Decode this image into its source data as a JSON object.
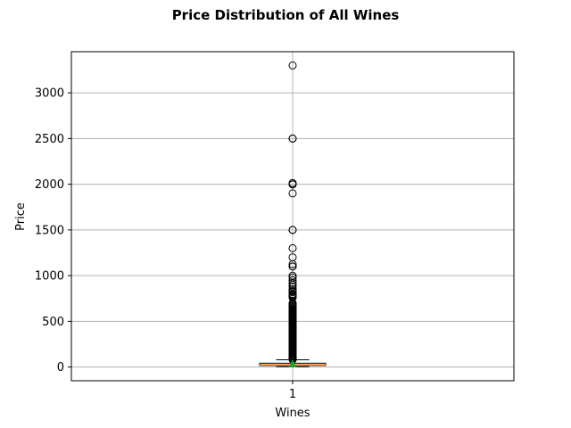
{
  "chart_data": {
    "type": "box",
    "title": "Price Distribution of All Wines",
    "xlabel": "Wines",
    "ylabel": "Price",
    "categories": [
      "1"
    ],
    "ylim": [
      -150,
      3450
    ],
    "yticks": [
      0,
      500,
      1000,
      1500,
      2000,
      2500,
      3000
    ],
    "grid": true,
    "colors": {
      "median": "#ff7f0e",
      "mean_marker": "#2ca02c",
      "grid": "#b0b0b0"
    },
    "box": {
      "q1": 17,
      "median": 25,
      "q3": 42,
      "whisker_low": 4,
      "whisker_high": 79,
      "mean": 35,
      "outliers": [
        3300,
        2500,
        2500,
        2013,
        2000,
        1998,
        1900,
        1500,
        1500,
        1300,
        1200,
        1125,
        1100,
        1100,
        1000,
        980,
        950,
        920,
        900,
        880,
        850,
        830,
        820,
        800,
        790,
        780,
        770,
        760,
        700,
        690,
        680,
        670,
        660,
        650,
        640,
        630,
        620,
        610,
        600,
        590,
        580,
        570,
        560,
        550,
        540,
        530,
        520,
        510,
        500,
        490,
        480,
        470,
        460,
        450,
        440,
        430,
        420,
        410,
        400,
        390,
        380,
        370,
        360,
        350,
        340,
        330,
        320,
        310,
        300,
        290,
        280,
        270,
        260,
        250,
        240,
        230,
        220,
        210,
        200,
        190,
        180,
        170,
        160,
        150,
        140,
        130,
        120,
        110,
        100,
        90,
        85,
        82
      ]
    }
  }
}
